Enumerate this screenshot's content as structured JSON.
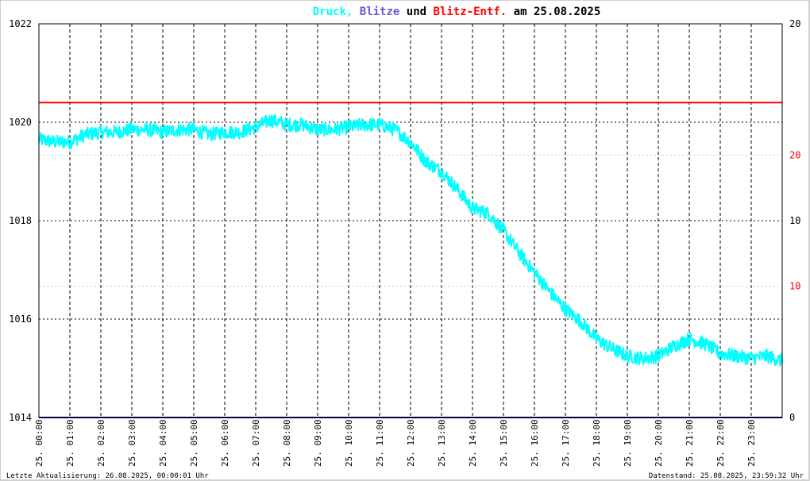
{
  "title": {
    "part1": "Druck,",
    "part2": "Blitze",
    "part3": "und",
    "part4": "Blitz-Entf.",
    "part5": "am 25.08.2025"
  },
  "footer": {
    "left": "Letzte Aktualisierung: 26.08.2025, 00:00:01 Uhr",
    "right": "Datenstand: 25.08.2025, 23:59:32 Uhr"
  },
  "colors": {
    "pressure": "#00ffff",
    "strikes": "#6a5acd",
    "distance": "#ff0000",
    "title_and": "#000000",
    "baseline": "#000080",
    "limit_line": "#ff0000"
  },
  "chart_data": {
    "type": "line",
    "x_range_hours": [
      0,
      24
    ],
    "x_tick_labels": [
      "25. 00:00",
      "25. 01:00",
      "25. 02:00",
      "25. 03:00",
      "25. 04:00",
      "25. 05:00",
      "25. 06:00",
      "25. 07:00",
      "25. 08:00",
      "25. 09:00",
      "25. 10:00",
      "25. 11:00",
      "25. 12:00",
      "25. 13:00",
      "25. 14:00",
      "25. 15:00",
      "25. 16:00",
      "25. 17:00",
      "25. 18:00",
      "25. 19:00",
      "25. 20:00",
      "25. 21:00",
      "25. 22:00",
      "25. 23:00"
    ],
    "y_left": {
      "range": [
        1014,
        1022
      ],
      "ticks": [
        "1014",
        "1016",
        "1018",
        "1020",
        "1022"
      ]
    },
    "y_right_strikes": {
      "range": [
        0,
        20
      ],
      "ticks": [
        "0",
        "10",
        "20"
      ]
    },
    "y_right_distance": {
      "range": [
        0,
        30
      ],
      "ticks": [
        "10",
        "20"
      ]
    },
    "grid": true,
    "limit_line_hpa": 1020.4,
    "series": [
      {
        "name": "Druck",
        "x": [
          0,
          0.5,
          1,
          1.5,
          2,
          2.5,
          3,
          3.5,
          4,
          4.5,
          5,
          5.5,
          6,
          6.5,
          7,
          7.5,
          8,
          8.5,
          9,
          9.5,
          10,
          10.5,
          11,
          11.5,
          12,
          12.5,
          13,
          13.5,
          14,
          14.5,
          15,
          15.5,
          16,
          16.5,
          17,
          17.5,
          18,
          18.5,
          19,
          19.5,
          20,
          20.5,
          21,
          21.5,
          22,
          22.5,
          23,
          23.5,
          24
        ],
        "values": [
          1019.65,
          1019.6,
          1019.6,
          1019.75,
          1019.8,
          1019.8,
          1019.85,
          1019.85,
          1019.8,
          1019.85,
          1019.85,
          1019.75,
          1019.8,
          1019.8,
          1019.9,
          1020.05,
          1019.95,
          1019.95,
          1019.85,
          1019.85,
          1019.9,
          1019.95,
          1019.95,
          1019.85,
          1019.6,
          1019.2,
          1019.0,
          1018.65,
          1018.25,
          1018.15,
          1017.8,
          1017.35,
          1016.95,
          1016.55,
          1016.2,
          1015.95,
          1015.6,
          1015.4,
          1015.25,
          1015.2,
          1015.25,
          1015.45,
          1015.6,
          1015.5,
          1015.3,
          1015.25,
          1015.2,
          1015.25,
          1015.15
        ]
      }
    ]
  }
}
